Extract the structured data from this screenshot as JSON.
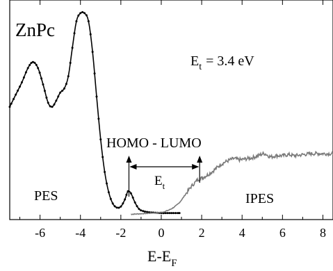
{
  "chart_data": {
    "type": "line",
    "title": "ZnPc",
    "xlabel_main": "E-E",
    "xlabel_sub": "F",
    "ylabel": "",
    "xlim": [
      -7.5,
      8.5
    ],
    "ylim": [
      0,
      1
    ],
    "grid": false,
    "x_ticks": [
      -6,
      -4,
      -2,
      0,
      2,
      4,
      6,
      8
    ],
    "x_tick_labels": [
      "-6",
      "-4",
      "-2",
      "0",
      "2",
      "4",
      "6",
      "8"
    ],
    "series": [
      {
        "name": "PES",
        "style": "line-with-dots",
        "points": [
          [
            -7.5,
            0.53
          ],
          [
            -7.2,
            0.59
          ],
          [
            -6.9,
            0.65
          ],
          [
            -6.6,
            0.72
          ],
          [
            -6.35,
            0.75
          ],
          [
            -6.1,
            0.72
          ],
          [
            -5.85,
            0.64
          ],
          [
            -5.6,
            0.55
          ],
          [
            -5.4,
            0.53
          ],
          [
            -5.2,
            0.56
          ],
          [
            -5.0,
            0.6
          ],
          [
            -4.8,
            0.62
          ],
          [
            -4.6,
            0.68
          ],
          [
            -4.4,
            0.82
          ],
          [
            -4.2,
            0.95
          ],
          [
            -4.0,
            0.99
          ],
          [
            -3.8,
            0.99
          ],
          [
            -3.6,
            0.95
          ],
          [
            -3.4,
            0.8
          ],
          [
            -3.2,
            0.58
          ],
          [
            -3.0,
            0.37
          ],
          [
            -2.8,
            0.21
          ],
          [
            -2.6,
            0.11
          ],
          [
            -2.4,
            0.055
          ],
          [
            -2.2,
            0.035
          ],
          [
            -2.0,
            0.04
          ],
          [
            -1.8,
            0.075
          ],
          [
            -1.65,
            0.115
          ],
          [
            -1.5,
            0.105
          ],
          [
            -1.3,
            0.06
          ],
          [
            -1.1,
            0.028
          ],
          [
            -0.9,
            0.018
          ],
          [
            -0.6,
            0.012
          ],
          [
            -0.3,
            0.01
          ],
          [
            0.0,
            0.008
          ],
          [
            0.3,
            0.008
          ],
          [
            0.6,
            0.008
          ],
          [
            0.9,
            0.008
          ]
        ]
      },
      {
        "name": "IPES",
        "style": "noisy-line",
        "points": [
          [
            -1.5,
            0.002
          ],
          [
            -1.0,
            0.005
          ],
          [
            -0.5,
            0.008
          ],
          [
            0.0,
            0.012
          ],
          [
            0.3,
            0.02
          ],
          [
            0.6,
            0.035
          ],
          [
            0.9,
            0.06
          ],
          [
            1.2,
            0.1
          ],
          [
            1.5,
            0.14
          ],
          [
            1.8,
            0.17
          ],
          [
            2.0,
            0.18
          ],
          [
            2.2,
            0.19
          ],
          [
            2.5,
            0.21
          ],
          [
            2.8,
            0.235
          ],
          [
            3.0,
            0.25
          ],
          [
            3.3,
            0.265
          ],
          [
            3.6,
            0.275
          ],
          [
            3.9,
            0.27
          ],
          [
            4.2,
            0.275
          ],
          [
            4.5,
            0.28
          ],
          [
            4.8,
            0.29
          ],
          [
            5.1,
            0.3
          ],
          [
            5.4,
            0.285
          ],
          [
            5.7,
            0.29
          ],
          [
            6.0,
            0.29
          ],
          [
            6.3,
            0.295
          ],
          [
            6.6,
            0.29
          ],
          [
            7.0,
            0.295
          ],
          [
            7.5,
            0.3
          ],
          [
            8.0,
            0.3
          ],
          [
            8.5,
            0.3
          ]
        ]
      }
    ],
    "annotations": {
      "et_value_label": "= 3.4 eV",
      "et_value_symbol": "E",
      "et_value_sub": "t",
      "homo_lumo_label": "HOMO - LUMO",
      "gap_symbol": "E",
      "gap_sub": "t",
      "homo_position": -1.6,
      "lumo_position": 1.9,
      "pes_label": "PES",
      "ipes_label": "IPES"
    }
  }
}
